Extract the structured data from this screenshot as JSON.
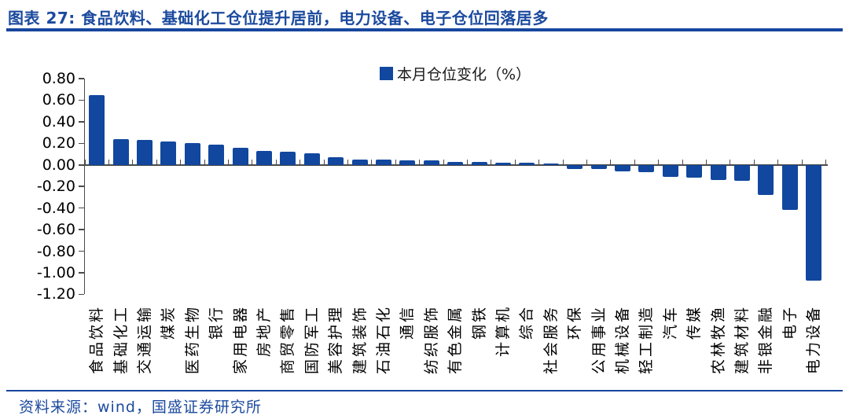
{
  "header": {
    "title": "图表 27: 食品饮料、基础化工仓位提升居前，电力设备、电子仓位回落居多"
  },
  "chart_data": {
    "type": "bar",
    "legend": "本月仓位变化（%）",
    "categories": [
      "食品饮料",
      "基础化工",
      "交通运输",
      "煤炭",
      "医药生物",
      "银行",
      "家用电器",
      "房地产",
      "商贸零售",
      "国防军工",
      "美容护理",
      "建筑装饰",
      "石油石化",
      "通信",
      "纺织服饰",
      "有色金属",
      "钢铁",
      "计算机",
      "综合",
      "社会服务",
      "环保",
      "公用事业",
      "机械设备",
      "轻工制造",
      "汽车",
      "传媒",
      "农林牧渔",
      "建筑材料",
      "非银金融",
      "电子",
      "电力设备"
    ],
    "values": [
      0.65,
      0.24,
      0.23,
      0.22,
      0.2,
      0.19,
      0.16,
      0.13,
      0.12,
      0.11,
      0.07,
      0.05,
      0.05,
      0.04,
      0.04,
      0.03,
      0.03,
      0.02,
      0.02,
      0.01,
      -0.04,
      -0.04,
      -0.06,
      -0.07,
      -0.11,
      -0.12,
      -0.14,
      -0.15,
      -0.28,
      -0.42,
      -1.07
    ],
    "ylim": [
      -1.2,
      0.8
    ],
    "ytick_step": 0.2,
    "ytick_labels": [
      "0.80",
      "0.60",
      "0.40",
      "0.20",
      "0.00",
      "-0.20",
      "-0.40",
      "-0.60",
      "-0.80",
      "-1.00",
      "-1.20"
    ],
    "xlabel": "",
    "ylabel": "",
    "grid": false,
    "legend_position": "top-center",
    "bar_color": "#11479E",
    "unit": "%"
  },
  "footer": {
    "source": "资料来源：wind，国盛证券研究所"
  },
  "colors": {
    "title_blue": "#1B4A9E",
    "rule_blue": "#17469E",
    "bar_blue": "#11479E",
    "axis_gray": "#4a4a4a",
    "text_black": "#000000"
  }
}
